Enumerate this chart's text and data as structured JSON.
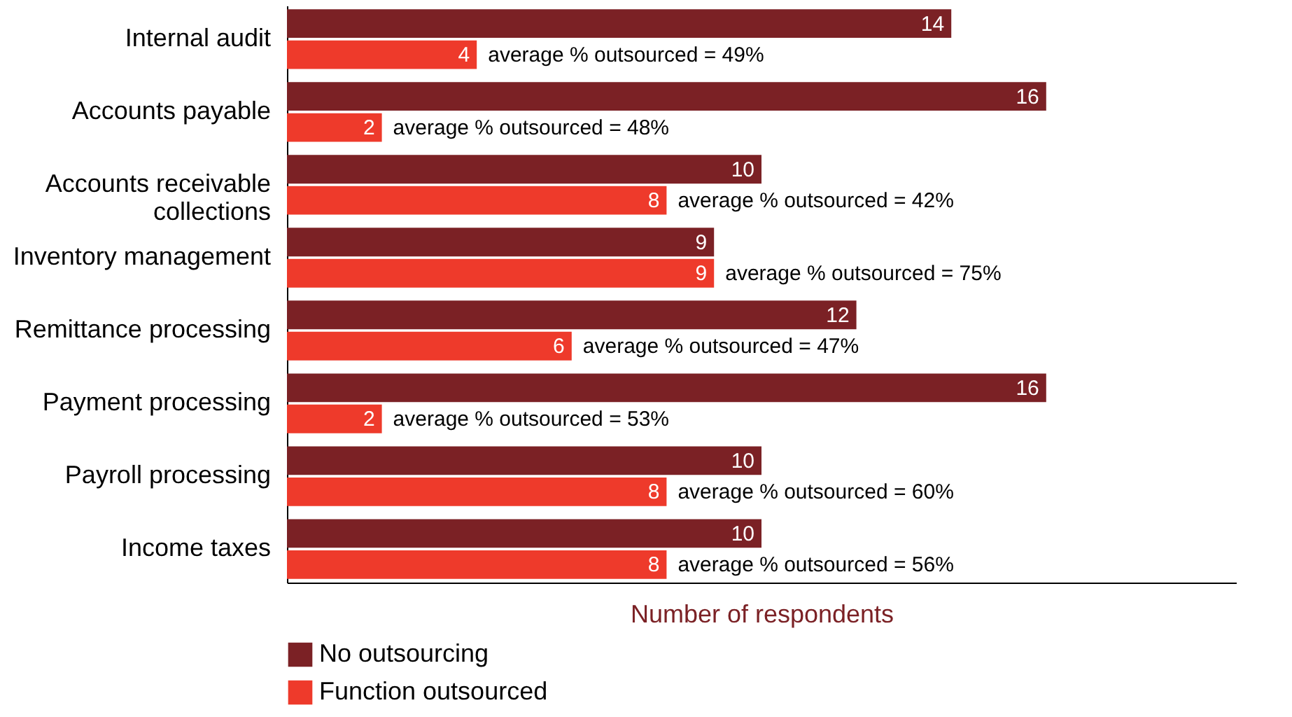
{
  "chart_data": {
    "type": "bar",
    "orientation": "horizontal",
    "xlabel": "Number of respondents",
    "categories": [
      "Internal audit",
      "Accounts payable",
      "Accounts receivable collections",
      "Inventory management",
      "Remittance processing",
      "Payment processing",
      "Payroll processing",
      "Income taxes"
    ],
    "series": [
      {
        "name": "No outsourcing",
        "color": "#7b2125",
        "values": [
          14,
          16,
          10,
          9,
          12,
          16,
          10,
          10
        ]
      },
      {
        "name": "Function outsourced",
        "color": "#ee3a2b",
        "values": [
          4,
          2,
          8,
          9,
          6,
          2,
          8,
          8
        ]
      }
    ],
    "xlim": [
      0,
      20
    ],
    "tick_labels": "y",
    "data_labels": true,
    "legend": "bottom",
    "annotations": [
      {
        "text": "average % outsourced = 49%",
        "x": 4,
        "y": "Internal audit"
      },
      {
        "text": "average % outsourced = 48%",
        "x": 2,
        "y": "Accounts payable"
      },
      {
        "text": "average % outsourced = 42%",
        "x": 8,
        "y": "Accounts receivable collections"
      },
      {
        "text": "average % outsourced = 75%",
        "x": 9,
        "y": "Inventory management"
      },
      {
        "text": "average % outsourced = 47%",
        "x": 6,
        "y": "Remittance processing"
      },
      {
        "text": "average % outsourced = 53%",
        "x": 2,
        "y": "Payment processing"
      },
      {
        "text": "average % outsourced = 60%",
        "x": 8,
        "y": "Payroll processing"
      },
      {
        "text": "average % outsourced = 56%",
        "x": 8,
        "y": "Income taxes"
      }
    ]
  }
}
